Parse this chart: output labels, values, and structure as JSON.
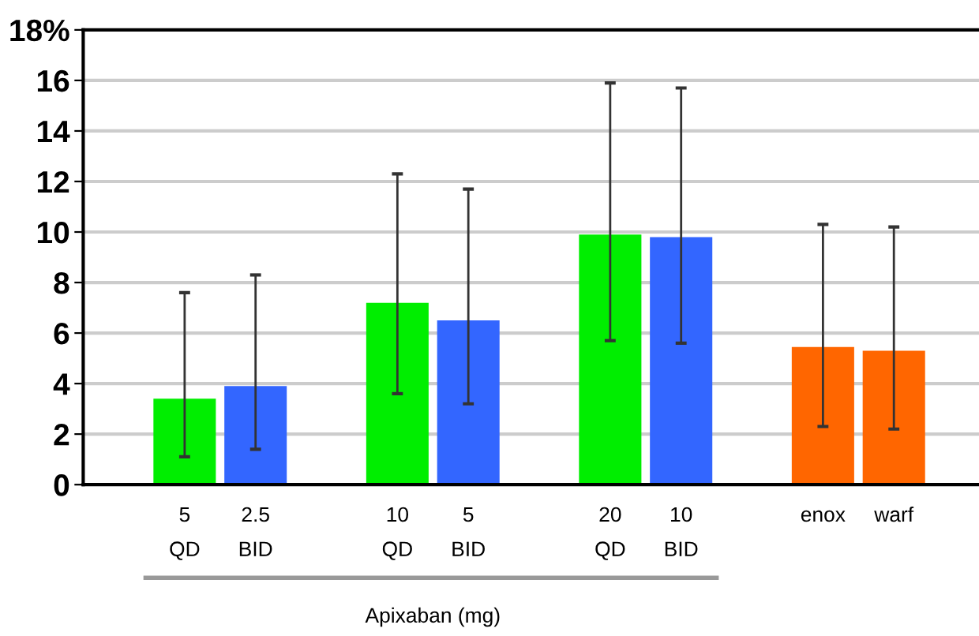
{
  "chart_data": {
    "type": "bar",
    "categories": [
      "5\nQD",
      "2.5\nBID",
      null,
      "10\nQD",
      "5\nBID",
      null,
      "20\nQD",
      "10\nBID",
      null,
      "enox",
      "warf"
    ],
    "values": [
      3.4,
      3.9,
      null,
      7.2,
      6.5,
      null,
      9.9,
      9.8,
      null,
      5.45,
      5.3
    ],
    "colors": [
      "#00ee00",
      "#3366ff",
      null,
      "#00ee00",
      "#3366ff",
      null,
      "#00ee00",
      "#3366ff",
      null,
      "#ff6600",
      "#ff6600"
    ],
    "errors": [
      [
        1.1,
        7.6
      ],
      [
        1.4,
        8.3
      ],
      null,
      [
        3.6,
        12.3
      ],
      [
        3.2,
        11.7
      ],
      null,
      [
        5.7,
        15.9
      ],
      [
        5.6,
        15.7
      ],
      null,
      [
        2.3,
        10.3
      ],
      [
        2.2,
        10.2
      ]
    ],
    "ylim": [
      0,
      18
    ],
    "yticks": [
      0,
      2,
      4,
      6,
      8,
      10,
      12,
      14,
      16,
      {
        "value": 18,
        "label": "18%"
      }
    ],
    "grid": "y",
    "annotations": [
      "Apixaban (mg)"
    ]
  }
}
